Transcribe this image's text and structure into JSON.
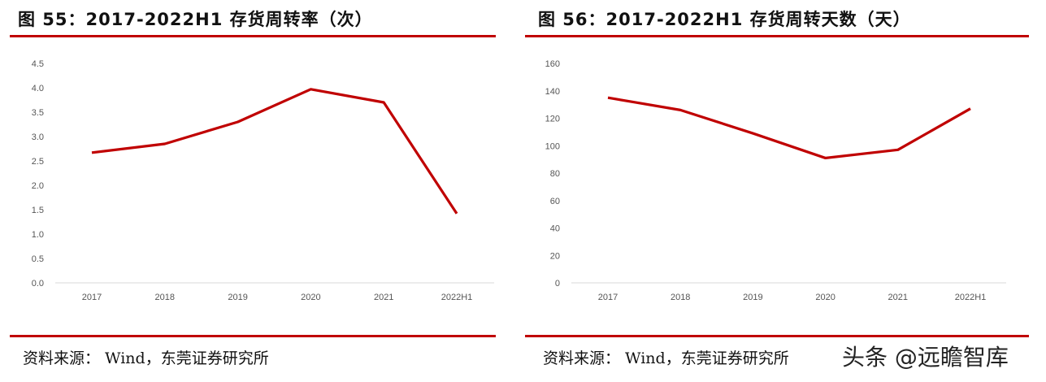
{
  "chart_data": [
    {
      "type": "line",
      "title": "图 55：2017-2022H1 存货周转率（次）",
      "categories": [
        "2017",
        "2018",
        "2019",
        "2020",
        "2021",
        "2022H1"
      ],
      "series": [
        {
          "values": [
            2.67,
            2.85,
            3.3,
            3.97,
            3.7,
            1.42
          ]
        }
      ],
      "yticks": [
        "0.0",
        "0.5",
        "1.0",
        "1.5",
        "2.0",
        "2.5",
        "3.0",
        "3.5",
        "4.0",
        "4.5"
      ],
      "ylim": [
        0,
        4.5
      ],
      "grid": false,
      "line_color": "#c00000",
      "source": "资料来源： Wind，东莞证券研究所"
    },
    {
      "type": "line",
      "title": "图 56：2017-2022H1 存货周转天数（天）",
      "categories": [
        "2017",
        "2018",
        "2019",
        "2020",
        "2021",
        "2022H1"
      ],
      "series": [
        {
          "values": [
            135,
            126,
            109,
            91,
            97,
            127
          ]
        }
      ],
      "yticks": [
        "0",
        "20",
        "40",
        "60",
        "80",
        "100",
        "120",
        "140",
        "160"
      ],
      "ylim": [
        0,
        160
      ],
      "grid": false,
      "line_color": "#c00000",
      "source": "资料来源： Wind，东莞证券研究所"
    }
  ],
  "watermark": "头条 @远瞻智库",
  "rule_color": "#c00000"
}
